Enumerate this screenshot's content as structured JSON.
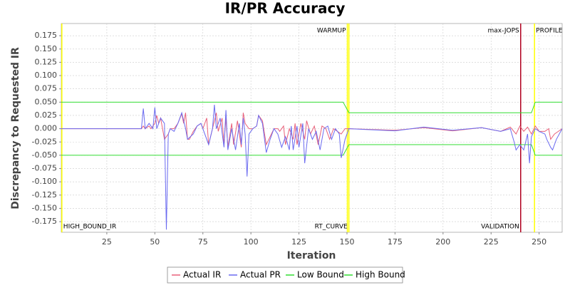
{
  "chart_data": {
    "type": "line",
    "title": "IR/PR Accuracy",
    "x_label": "Iteration",
    "y_label": "Discrepancy to Requested IR",
    "xlim": [
      1.3,
      262
    ],
    "ylim": [
      -0.195,
      0.198
    ],
    "xticks": [
      25,
      50,
      75,
      100,
      125,
      150,
      175,
      200,
      225,
      250
    ],
    "yticks": [
      {
        "value": -0.175,
        "label": "-0.175"
      },
      {
        "value": -0.15,
        "label": "-0.150"
      },
      {
        "value": -0.125,
        "label": "-0.125"
      },
      {
        "value": -0.1,
        "label": "-0.100"
      },
      {
        "value": -0.075,
        "label": "-0.075"
      },
      {
        "value": -0.05,
        "label": "-0.050"
      },
      {
        "value": -0.025,
        "label": "-0.025"
      },
      {
        "value": 0,
        "label": "0.000"
      },
      0.025,
      {
        "value": 0.05,
        "label": "0.050"
      },
      0.075,
      {
        "value": 0.1,
        "label": "0.100"
      },
      0.125,
      {
        "value": 0.15,
        "label": "0.150"
      },
      0.175
    ],
    "grid": true,
    "legend": "bottom",
    "markers": [
      {
        "label": "HIGH_BOUND_IR",
        "value": 1.6,
        "color": "#ffff00",
        "position": "bottom",
        "align": "left"
      },
      {
        "label": "WARMUP",
        "value": 150.2,
        "color": "#ffff00",
        "position": "top",
        "align": "right"
      },
      {
        "label": "RT_CURVE",
        "value": 151,
        "color": "#ffff00",
        "position": "bottom",
        "align": "right"
      },
      {
        "label": "max-JOPS",
        "value": 240.4,
        "color": "#b00020",
        "position": "top",
        "align": "right"
      },
      {
        "label": "VALIDATION",
        "value": 240.4,
        "color": "#b00020",
        "position": "bottom",
        "align": "right"
      },
      {
        "label": "PROFILE",
        "value": 247.6,
        "color": "#ffff00",
        "position": "top",
        "align": "left"
      }
    ],
    "series": [
      {
        "name": "Actual IR",
        "color": "#e8607a",
        "x": [
          1,
          43,
          44,
          45,
          47,
          48,
          50,
          51,
          52,
          53,
          55,
          56,
          57,
          58,
          60,
          62,
          64,
          65,
          66,
          67,
          68,
          70,
          72,
          74,
          75,
          77,
          78,
          80,
          82,
          83,
          85,
          86,
          87,
          88,
          90,
          91,
          93,
          95,
          96,
          97,
          99,
          101,
          103,
          104,
          106,
          108,
          110,
          112,
          114,
          115,
          117,
          118,
          120,
          122,
          123,
          124,
          126,
          128,
          129,
          131,
          133,
          135,
          137,
          139,
          141,
          143,
          145,
          147,
          149,
          151,
          175,
          190,
          205,
          220,
          230,
          235,
          238,
          240,
          242,
          244,
          246,
          248,
          250,
          253,
          255,
          256,
          258,
          260,
          262
        ],
        "values": [
          0,
          0,
          0.005,
          0,
          0.005,
          0,
          0.01,
          0.025,
          0.01,
          0.02,
          -0.02,
          -0.015,
          -0.01,
          0,
          0,
          0.01,
          0.028,
          0.01,
          0.03,
          -0.02,
          -0.02,
          -0.005,
          0.005,
          0.01,
          0,
          0.02,
          -0.03,
          0,
          0.03,
          -0.005,
          0.02,
          -0.03,
          0.02,
          -0.035,
          0.01,
          -0.03,
          0.015,
          -0.035,
          0.03,
          0.01,
          0,
          0,
          0.005,
          0.025,
          0.015,
          -0.03,
          -0.015,
          0,
          0,
          -0.005,
          0.005,
          -0.03,
          0,
          -0.02,
          0.01,
          -0.03,
          0.01,
          -0.02,
          0.015,
          -0.01,
          0.005,
          -0.03,
          0.005,
          0,
          -0.02,
          0,
          -0.005,
          -0.01,
          0,
          0,
          -0.003,
          0.002,
          -0.004,
          0.002,
          -0.005,
          0.003,
          -0.01,
          0.005,
          -0.005,
          0.003,
          -0.01,
          0.005,
          -0.005,
          -0.005,
          0,
          -0.02,
          -0.01,
          -0.005,
          0
        ]
      },
      {
        "name": "Actual PR",
        "color": "#6a6af0",
        "x": [
          1,
          43,
          44,
          45,
          47,
          49,
          50,
          51,
          53,
          55,
          56,
          57,
          58,
          60,
          62,
          64,
          66,
          67,
          70,
          72,
          74,
          76,
          78,
          80,
          81,
          82,
          84,
          86,
          87,
          88,
          90,
          92,
          94,
          95,
          96,
          97,
          98,
          99,
          101,
          103,
          104,
          106,
          108,
          110,
          112,
          114,
          116,
          118,
          120,
          121,
          122,
          124,
          125,
          127,
          128,
          130,
          132,
          134,
          136,
          138,
          140,
          142,
          144,
          146,
          147,
          149,
          151,
          175,
          190,
          205,
          220,
          230,
          235,
          237,
          238,
          240,
          242,
          244,
          245,
          246,
          248,
          250,
          253,
          254,
          256,
          257,
          259,
          262
        ],
        "values": [
          0,
          0,
          0.038,
          0,
          0.01,
          0,
          0.04,
          0,
          0.02,
          0.01,
          -0.19,
          -0.01,
          0,
          -0.005,
          0.01,
          0.03,
          0,
          -0.02,
          -0.01,
          0.005,
          0.01,
          -0.01,
          -0.03,
          0,
          0.045,
          0,
          0.02,
          -0.035,
          0.035,
          -0.04,
          0,
          -0.04,
          0.01,
          -0.03,
          0.02,
          -0.01,
          -0.09,
          -0.01,
          0,
          0.005,
          0.025,
          0.01,
          -0.045,
          -0.02,
          0,
          -0.01,
          -0.035,
          -0.015,
          -0.04,
          0.005,
          -0.04,
          0.005,
          -0.035,
          0.01,
          -0.065,
          0,
          -0.02,
          -0.005,
          -0.04,
          0,
          0.005,
          -0.02,
          0,
          -0.01,
          -0.055,
          -0.02,
          0,
          -0.004,
          0.003,
          -0.003,
          0.002,
          -0.005,
          0,
          -0.025,
          -0.04,
          -0.03,
          -0.04,
          -0.01,
          -0.065,
          -0.015,
          0,
          -0.005,
          -0.01,
          -0.02,
          -0.035,
          -0.04,
          -0.02,
          0
        ]
      },
      {
        "name": "Low Bound",
        "color": "#33dd33",
        "x": [
          1.3,
          148,
          151,
          246,
          248,
          262
        ],
        "values": [
          -0.05,
          -0.05,
          -0.03,
          -0.03,
          -0.05,
          -0.05
        ]
      },
      {
        "name": "High Bound",
        "color": "#33dd33",
        "x": [
          1.3,
          148,
          151,
          246,
          248,
          262
        ],
        "values": [
          0.05,
          0.05,
          0.03,
          0.03,
          0.05,
          0.05
        ]
      }
    ]
  }
}
